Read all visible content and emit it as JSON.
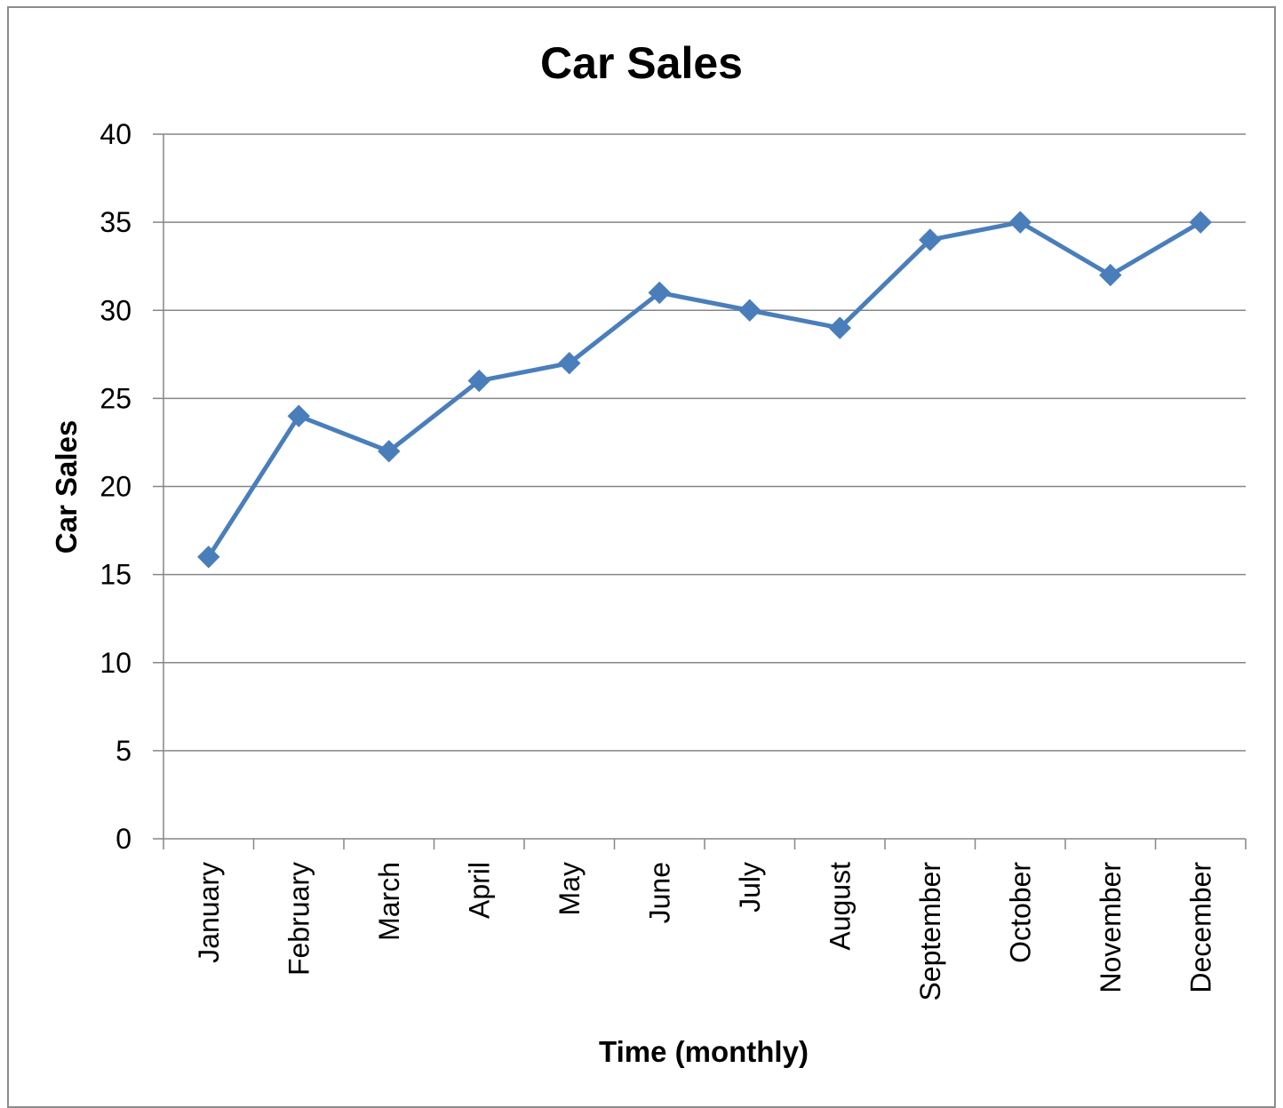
{
  "chart_data": {
    "type": "line",
    "title": "Car Sales",
    "xlabel": "Time (monthly)",
    "ylabel": "Car Sales",
    "categories": [
      "January",
      "February",
      "March",
      "April",
      "May",
      "June",
      "July",
      "August",
      "September",
      "October",
      "November",
      "December"
    ],
    "series": [
      {
        "values": [
          16,
          24,
          22,
          26,
          27,
          31,
          30,
          29,
          34,
          35,
          32,
          35
        ],
        "color": "#4a7ebb",
        "marker": "diamond"
      }
    ],
    "ylim": [
      0,
      40
    ],
    "yticks": [
      "0",
      "5",
      "10",
      "15",
      "20",
      "25",
      "30",
      "35",
      "40"
    ],
    "grid": true,
    "legend": "none"
  }
}
